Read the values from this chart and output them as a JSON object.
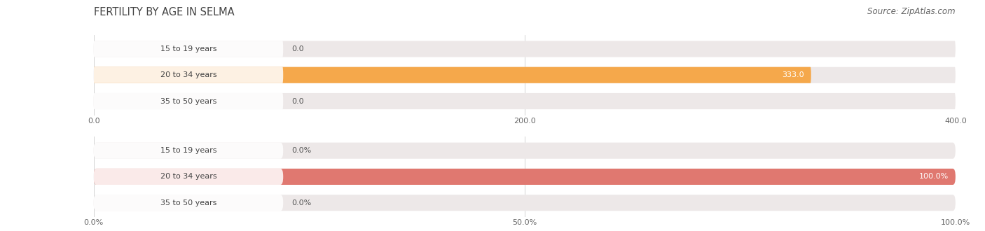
{
  "title": "FERTILITY BY AGE IN SELMA",
  "source": "Source: ZipAtlas.com",
  "top_chart": {
    "categories": [
      "15 to 19 years",
      "20 to 34 years",
      "35 to 50 years"
    ],
    "values": [
      0.0,
      333.0,
      0.0
    ],
    "bar_color": "#F5A84B",
    "bg_bar_color": "#ede8e8",
    "label_bubble_color": "#f0e8e0",
    "xlim": [
      0,
      400
    ],
    "xticks": [
      0.0,
      200.0,
      400.0
    ],
    "bar_height": 0.62,
    "show_percent": false
  },
  "bottom_chart": {
    "categories": [
      "15 to 19 years",
      "20 to 34 years",
      "35 to 50 years"
    ],
    "values": [
      0.0,
      100.0,
      0.0
    ],
    "bar_color": "#E07870",
    "bg_bar_color": "#ede8e8",
    "label_bubble_color": "#f0dede",
    "xlim": [
      0,
      100
    ],
    "xticks": [
      0.0,
      50.0,
      100.0
    ],
    "xtick_labels": [
      "0.0%",
      "50.0%",
      "100.0%"
    ],
    "bar_height": 0.62,
    "show_percent": true
  },
  "fig_bg": "#ffffff",
  "title_fontsize": 10.5,
  "source_fontsize": 8.5,
  "label_fontsize": 8,
  "tick_fontsize": 8,
  "category_fontsize": 8,
  "grid_color": "#cccccc"
}
